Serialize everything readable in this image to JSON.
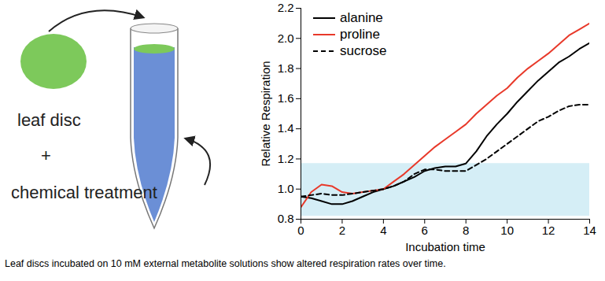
{
  "diagram": {
    "labels": [
      "leaf disc",
      "+",
      "chemical treatment"
    ]
  },
  "caption": "Leaf discs incubated on 10 mM external metabolite solutions show altered respiration rates over time.",
  "chart_data": {
    "type": "line",
    "xlabel": "Incubation time",
    "ylabel": "Relative Respiration",
    "x": [
      0,
      0.5,
      1,
      1.5,
      2,
      2.5,
      3,
      3.5,
      4,
      4.5,
      5,
      5.5,
      6,
      6.5,
      7,
      7.5,
      8,
      8.5,
      9,
      9.5,
      10,
      10.5,
      11,
      11.5,
      12,
      12.5,
      13,
      13.5,
      14
    ],
    "series": [
      {
        "name": "alanine",
        "color": "#000000",
        "line_style": "solid",
        "values": [
          0.95,
          0.94,
          0.92,
          0.9,
          0.9,
          0.92,
          0.95,
          0.98,
          1.0,
          1.02,
          1.05,
          1.08,
          1.12,
          1.14,
          1.15,
          1.15,
          1.17,
          1.25,
          1.35,
          1.43,
          1.5,
          1.58,
          1.65,
          1.72,
          1.78,
          1.84,
          1.88,
          1.93,
          1.97
        ]
      },
      {
        "name": "proline",
        "color": "#e8392a",
        "line_style": "solid",
        "values": [
          0.88,
          0.98,
          1.03,
          1.02,
          0.98,
          0.97,
          0.98,
          0.99,
          1.0,
          1.05,
          1.1,
          1.16,
          1.22,
          1.28,
          1.33,
          1.38,
          1.43,
          1.5,
          1.56,
          1.62,
          1.67,
          1.74,
          1.8,
          1.85,
          1.9,
          1.96,
          2.02,
          2.06,
          2.1
        ]
      },
      {
        "name": "sucrose",
        "color": "#000000",
        "line_style": "dashed",
        "values": [
          0.95,
          0.96,
          0.97,
          0.96,
          0.96,
          0.97,
          0.98,
          0.99,
          1.0,
          1.02,
          1.05,
          1.1,
          1.13,
          1.13,
          1.12,
          1.12,
          1.12,
          1.16,
          1.2,
          1.25,
          1.3,
          1.35,
          1.4,
          1.45,
          1.48,
          1.52,
          1.55,
          1.56,
          1.56
        ]
      }
    ],
    "band": [
      0.82,
      1.17
    ],
    "xlim": [
      0,
      14
    ],
    "xticks": [
      0,
      2,
      4,
      6,
      8,
      10,
      12,
      14
    ],
    "ylim": [
      0.8,
      2.2
    ],
    "yticks": [
      0.8,
      {
        "value": 1,
        "label": "1.0"
      },
      1.2,
      1.4,
      1.6,
      1.8,
      {
        "value": 2,
        "label": "2.0"
      },
      2.2
    ],
    "legend": "top-left"
  }
}
